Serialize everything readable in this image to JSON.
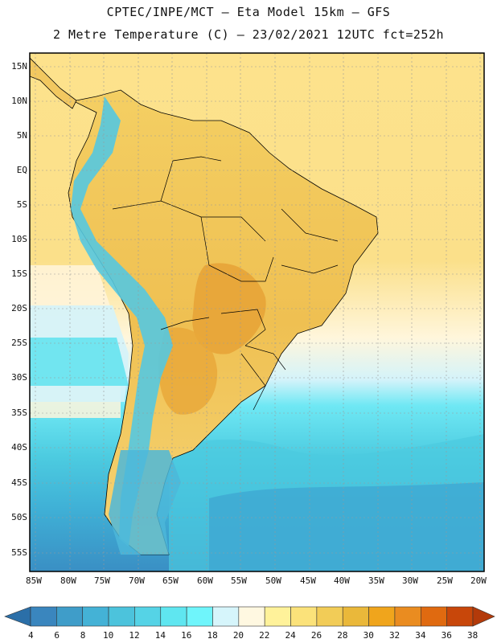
{
  "header": {
    "line1": "CPTEC/INPE/MCT –  Eta Model 15km – GFS",
    "line2": "2 Metre Temperature (C) – 23/02/2021 12UTC fct=252h"
  },
  "latitude_labels": [
    "15N",
    "10N",
    "5N",
    "EQ",
    "5S",
    "10S",
    "15S",
    "20S",
    "25S",
    "30S",
    "35S",
    "40S",
    "45S",
    "50S",
    "55S"
  ],
  "longitude_labels": [
    "85W",
    "80W",
    "75W",
    "70W",
    "65W",
    "60W",
    "55W",
    "50W",
    "45W",
    "40W",
    "35W",
    "30W",
    "25W",
    "20W"
  ],
  "colorbar": {
    "levels": [
      "4",
      "6",
      "8",
      "10",
      "12",
      "14",
      "16",
      "18",
      "20",
      "22",
      "24",
      "26",
      "28",
      "30",
      "32",
      "34",
      "36",
      "38"
    ],
    "colors": [
      "#2b6fa8",
      "#3a86be",
      "#3f9dc9",
      "#44b2d6",
      "#4cc3dc",
      "#55d3e6",
      "#5fe6f0",
      "#6ff5fb",
      "#d6f5fb",
      "#fff8e1",
      "#fff29a",
      "#fbe27a",
      "#f2cc57",
      "#eab83a",
      "#f0a51c",
      "#ea8c20",
      "#e06a10",
      "#c8470a",
      "#b33a0a"
    ]
  },
  "map_regions": {
    "land_warm": "#f2c860",
    "land_hot": "#e9a83a",
    "ocean_north": "#fde08a",
    "ocean_south_cold": "#3fa8d2",
    "andes": "#55c8e0"
  }
}
